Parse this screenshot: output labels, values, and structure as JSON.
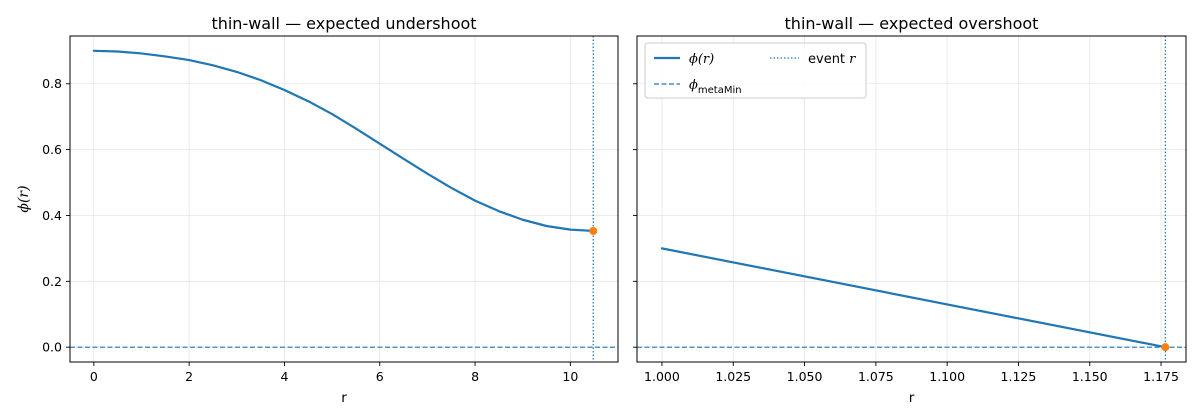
{
  "chart_data": [
    {
      "type": "line",
      "title": "thin-wall — expected undershoot",
      "xlabel": "r",
      "ylabel": "ϕ(r)",
      "xlim": [
        -0.5,
        11.0
      ],
      "ylim": [
        -0.045,
        0.945
      ],
      "xticks": [
        0,
        2,
        4,
        6,
        8,
        10
      ],
      "xtick_labels": [
        "0",
        "2",
        "4",
        "6",
        "8",
        "10"
      ],
      "yticks": [
        0.0,
        0.2,
        0.4,
        0.6,
        0.8
      ],
      "ytick_labels": [
        "0.0",
        "0.2",
        "0.4",
        "0.6",
        "0.8"
      ],
      "grid": true,
      "series": [
        {
          "name": "ϕ(r)",
          "style": "solid",
          "color": "#1f77b4",
          "x": [
            0,
            0.5,
            1,
            1.5,
            2,
            2.5,
            3,
            3.5,
            4,
            4.5,
            5,
            5.5,
            6,
            6.5,
            7,
            7.5,
            8,
            8.5,
            9,
            9.5,
            10,
            10.48
          ],
          "y": [
            0.9,
            0.898,
            0.892,
            0.883,
            0.872,
            0.856,
            0.836,
            0.811,
            0.781,
            0.747,
            0.708,
            0.664,
            0.618,
            0.572,
            0.527,
            0.484,
            0.445,
            0.413,
            0.387,
            0.368,
            0.357,
            0.353
          ]
        },
        {
          "name": "ϕ_metaMin",
          "style": "dashed",
          "color": "#1f77b4",
          "y_const": 0.0
        },
        {
          "name": "event r",
          "style": "dotted",
          "color": "#1f77b4",
          "x_const": 10.48
        }
      ],
      "event_point": {
        "x": 10.48,
        "y": 0.353,
        "color": "#ff7f0e"
      }
    },
    {
      "type": "line",
      "title": "thin-wall — expected overshoot",
      "xlabel": "r",
      "ylabel": "",
      "xlim": [
        0.99125,
        1.18375
      ],
      "ylim": [
        -0.045,
        0.945
      ],
      "xticks": [
        1.0,
        1.025,
        1.05,
        1.075,
        1.1,
        1.125,
        1.15,
        1.175
      ],
      "xtick_labels": [
        "1.000",
        "1.025",
        "1.050",
        "1.075",
        "1.100",
        "1.125",
        "1.150",
        "1.175"
      ],
      "yticks": [
        0.0,
        0.2,
        0.4,
        0.6,
        0.8
      ],
      "ytick_labels": [
        "",
        "",
        "",
        "",
        ""
      ],
      "grid": true,
      "legend": "upper-left",
      "series": [
        {
          "name": "ϕ(r)",
          "style": "solid",
          "color": "#1f77b4",
          "x": [
            1.0,
            1.1765
          ],
          "y": [
            0.3,
            0.0
          ]
        },
        {
          "name": "ϕ_metaMin",
          "style": "dashed",
          "color": "#1f77b4",
          "y_const": 0.0
        },
        {
          "name": "event r",
          "style": "dotted",
          "color": "#1f77b4",
          "x_const": 1.1765
        }
      ],
      "event_point": {
        "x": 1.1765,
        "y": 0.0,
        "color": "#ff7f0e"
      }
    }
  ],
  "legend": {
    "phi_label": "ϕ(r)",
    "meta_label_main": "ϕ",
    "meta_label_sub": "metaMin",
    "event_label_text": "event ",
    "event_label_var": "r"
  }
}
